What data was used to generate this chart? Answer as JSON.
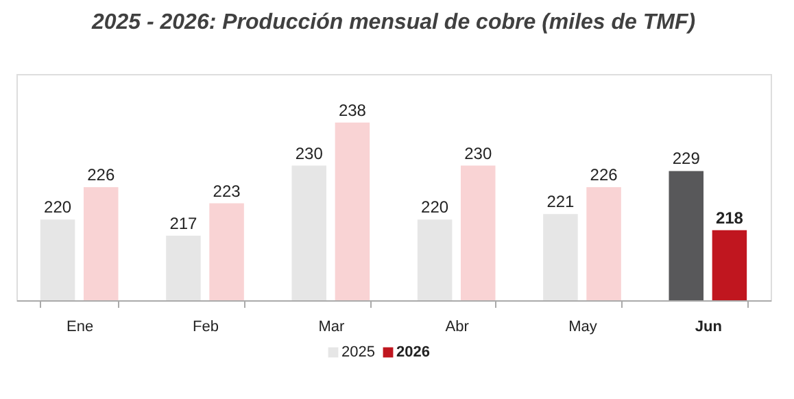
{
  "chart_data": {
    "type": "bar",
    "title": "2025 - 2026: Producción mensual de cobre (miles de TMF)",
    "categories": [
      "Ene",
      "Feb",
      "Mar",
      "Abr",
      "May",
      "Jun"
    ],
    "series": [
      {
        "name": "2025",
        "color": "#e6e6e6",
        "colors": [
          "#e6e6e6",
          "#e6e6e6",
          "#e6e6e6",
          "#e6e6e6",
          "#e6e6e6",
          "#58585a"
        ],
        "values": [
          220,
          217,
          230,
          220,
          221,
          229
        ]
      },
      {
        "name": "2026",
        "color": "#c0161f",
        "colors": [
          "#f9d3d4",
          "#f9d3d4",
          "#f9d3d4",
          "#f9d3d4",
          "#f9d3d4",
          "#c0161f"
        ],
        "values": [
          226,
          223,
          238,
          230,
          226,
          218
        ]
      }
    ],
    "ylim": [
      205,
      247
    ],
    "tick_labels": "x",
    "data_labels": true,
    "legend": "bottom",
    "grid": false
  }
}
